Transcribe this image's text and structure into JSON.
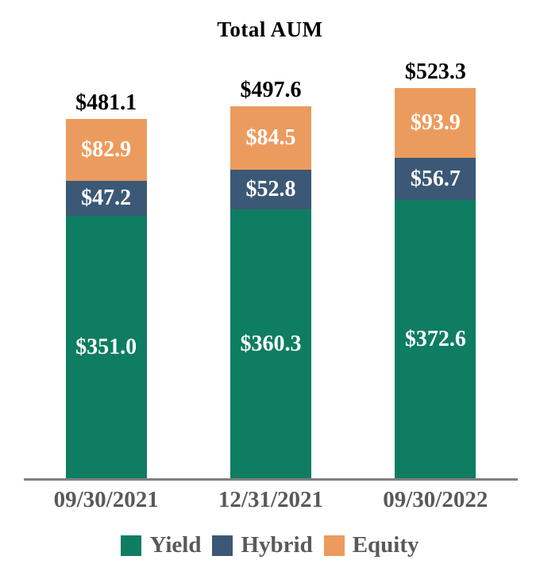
{
  "chart_data": {
    "type": "bar",
    "stacked": true,
    "title": "Total AUM",
    "categories": [
      "09/30/2021",
      "12/31/2021",
      "09/30/2022"
    ],
    "series": [
      {
        "name": "Yield",
        "color": "#0E7D62",
        "values": [
          351.0,
          360.3,
          372.6
        ],
        "labels": [
          "$351.0",
          "$360.3",
          "$372.6"
        ]
      },
      {
        "name": "Hybrid",
        "color": "#3B5876",
        "values": [
          47.2,
          52.8,
          56.7
        ],
        "labels": [
          "$47.2",
          "$52.8",
          "$56.7"
        ]
      },
      {
        "name": "Equity",
        "color": "#EC9B5E",
        "values": [
          82.9,
          84.5,
          93.9
        ],
        "labels": [
          "$82.9",
          "$84.5",
          "$93.9"
        ]
      }
    ],
    "totals": [
      481.1,
      497.6,
      523.3
    ],
    "total_labels": [
      "$481.1",
      "$497.6",
      "$523.3"
    ],
    "xlabel": "",
    "ylabel": "",
    "ylim": [
      0,
      560
    ],
    "y_axis_visible": false,
    "grid": false,
    "legend_position": "bottom",
    "colors": {
      "axis_line": "#7F7F7F",
      "tick_label": "#595959",
      "legend_label": "#595959",
      "total_label": "#000000",
      "segment_label": "#FFFFFF",
      "background": "#FFFFFF"
    }
  }
}
